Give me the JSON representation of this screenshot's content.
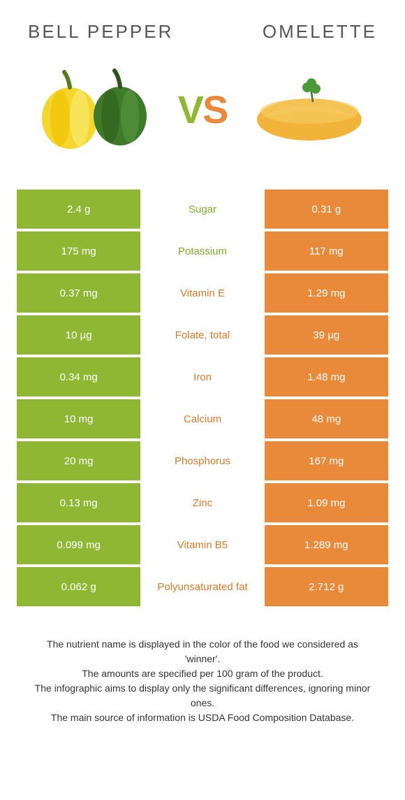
{
  "header": {
    "left_title": "Bell pepper",
    "right_title": "Omelette",
    "vs_v": "V",
    "vs_s": "S"
  },
  "colors": {
    "left_bg": "#8fb734",
    "right_bg": "#e88a3a",
    "left_text": "#7da82c",
    "right_text": "#d67a2e",
    "cell_text": "#ffffff"
  },
  "rows": [
    {
      "left": "2.4 g",
      "label": "Sugar",
      "right": "0.31 g",
      "winner": "left"
    },
    {
      "left": "175 mg",
      "label": "Potassium",
      "right": "117 mg",
      "winner": "left"
    },
    {
      "left": "0.37 mg",
      "label": "Vitamin E",
      "right": "1.29 mg",
      "winner": "right"
    },
    {
      "left": "10 µg",
      "label": "Folate, total",
      "right": "39 µg",
      "winner": "right"
    },
    {
      "left": "0.34 mg",
      "label": "Iron",
      "right": "1.48 mg",
      "winner": "right"
    },
    {
      "left": "10 mg",
      "label": "Calcium",
      "right": "48 mg",
      "winner": "right"
    },
    {
      "left": "20 mg",
      "label": "Phosphorus",
      "right": "167 mg",
      "winner": "right"
    },
    {
      "left": "0.13 mg",
      "label": "Zinc",
      "right": "1.09 mg",
      "winner": "right"
    },
    {
      "left": "0.099 mg",
      "label": "Vitamin B5",
      "right": "1.289 mg",
      "winner": "right"
    },
    {
      "left": "0.062 g",
      "label": "Polyunsaturated fat",
      "right": "2.712 g",
      "winner": "right"
    }
  ],
  "footer": {
    "line1": "The nutrient name is displayed in the color of the food we considered as 'winner'.",
    "line2": "The amounts are specified per 100 gram of the product.",
    "line3": "The infographic aims to display only the significant differences, ignoring minor ones.",
    "line4": "The main source of information is USDA Food Composition Database."
  }
}
